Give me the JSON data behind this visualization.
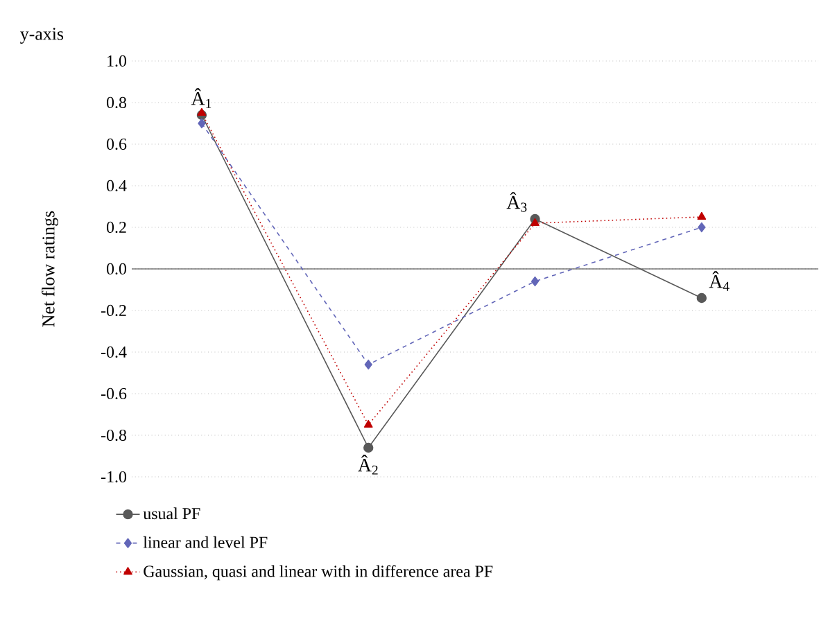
{
  "chart_data": {
    "type": "line",
    "ylabel": "Net flow ratings",
    "annotations": [
      "y-axis",
      "Â$_{1}$",
      "Â$_{2}$",
      "Â$_{3}$",
      "Â$_{4}$"
    ],
    "categories": [
      null,
      null,
      null,
      null
    ],
    "series": [
      {
        "name": "usual PF",
        "color": "#595959",
        "marker": "circle",
        "line_style": "solid",
        "values": [
          0.74,
          -0.86,
          0.24,
          -0.14
        ]
      },
      {
        "name": "linear and level PF",
        "color": "#6266b8",
        "marker": "diamond",
        "line_style": "dashed",
        "values": [
          0.7,
          -0.46,
          -0.06,
          0.2
        ]
      },
      {
        "name": "Gaussian, quasi and linear with in difference area PF",
        "color": "#c00000",
        "marker": "triangle",
        "line_style": "dotted",
        "values": [
          0.75,
          -0.75,
          0.22,
          0.25
        ]
      }
    ],
    "ylim": [
      -1.0,
      1.0
    ],
    "yticks": [
      {
        "value": -1.0,
        "label": "-1.0"
      },
      {
        "value": -0.8,
        "label": "-0.8"
      },
      {
        "value": -0.6,
        "label": "-0.6"
      },
      {
        "value": -0.4,
        "label": "-0.4"
      },
      {
        "value": -0.2,
        "label": "-0.2"
      },
      {
        "value": 0.0,
        "label": "0.0"
      },
      {
        "value": 0.2,
        "label": "0.2"
      },
      {
        "value": 0.4,
        "label": "0.4"
      },
      {
        "value": 0.6,
        "label": "0.6"
      },
      {
        "value": 0.8,
        "label": "0.8"
      },
      {
        "value": 1.0,
        "label": "1.0"
      }
    ],
    "grid": "y",
    "legend": "bottom",
    "tick_labels": "y"
  }
}
